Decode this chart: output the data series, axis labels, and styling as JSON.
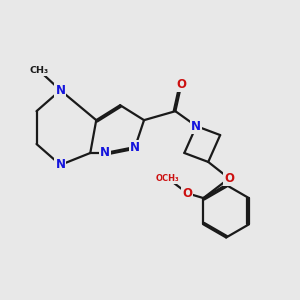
{
  "bg": "#e8e8e8",
  "bond_color": "#1a1a1a",
  "N_color": "#1414dd",
  "O_color": "#cc1010",
  "C_color": "#1a1a1a",
  "lw": 1.6,
  "dbo": 0.055,
  "fs": 8.5,
  "figsize": [
    3.0,
    3.0
  ],
  "dpi": 100,
  "xlim": [
    0,
    10
  ],
  "ylim": [
    0,
    10
  ]
}
